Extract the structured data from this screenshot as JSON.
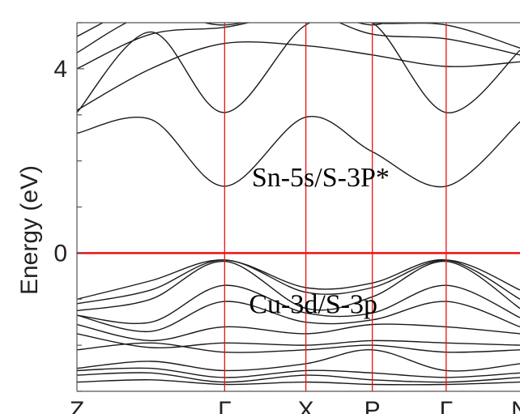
{
  "chart_data": {
    "type": "line",
    "title": "",
    "xlabel": "",
    "ylabel": "Energy (eV)",
    "x_ticks": [
      {
        "label": "Z",
        "x": 0
      },
      {
        "label": "Γ",
        "x": 1
      },
      {
        "label": "X",
        "x": 1.55
      },
      {
        "label": "P",
        "x": 2
      },
      {
        "label": "Γ",
        "x": 2.5
      },
      {
        "label": "N",
        "x": 3
      }
    ],
    "xlim": [
      0,
      3
    ],
    "y_ticks": [
      0,
      4
    ],
    "ylim": [
      -3,
      5
    ],
    "minor_y_step": 1,
    "fermi_level": 0,
    "grid": false,
    "annotations": [
      {
        "text": "Sn-5s/S-3P*",
        "x": 1.65,
        "y": 1.45
      },
      {
        "text": "Cu-3d/S-3p",
        "x": 1.6,
        "y": -1.3
      }
    ],
    "series": [
      {
        "values": [
          [
            0,
            2.6
          ],
          [
            0.5,
            2.9
          ],
          [
            1,
            1.45
          ],
          [
            1.55,
            2.95
          ],
          [
            2,
            2.2
          ],
          [
            2.5,
            1.45
          ],
          [
            3,
            2.85
          ]
        ]
      },
      {
        "values": [
          [
            0,
            3.05
          ],
          [
            0.5,
            4.8
          ],
          [
            1,
            3.05
          ],
          [
            1.55,
            4.95
          ],
          [
            2,
            5.0
          ],
          [
            2.5,
            3.05
          ],
          [
            3,
            4.4
          ]
        ]
      },
      {
        "values": [
          [
            0,
            3.1
          ],
          [
            0.5,
            4.0
          ],
          [
            1,
            4.55
          ],
          [
            1.55,
            4.5
          ],
          [
            2,
            4.3
          ],
          [
            2.5,
            4.05
          ],
          [
            3,
            4.15
          ]
        ]
      },
      {
        "values": [
          [
            0,
            4.0
          ],
          [
            0.5,
            4.75
          ],
          [
            1,
            4.9
          ],
          [
            1.55,
            5.2
          ],
          [
            2,
            4.75
          ],
          [
            2.5,
            4.65
          ],
          [
            3,
            4.3
          ]
        ]
      },
      {
        "values": [
          [
            0,
            4.35
          ],
          [
            0.5,
            5.2
          ],
          [
            1,
            4.95
          ],
          [
            1.55,
            5.3
          ],
          [
            2,
            5.0
          ],
          [
            2.5,
            4.95
          ],
          [
            3,
            4.45
          ]
        ]
      },
      {
        "values": [
          [
            0,
            4.7
          ],
          [
            0.35,
            5.3
          ]
        ]
      },
      {
        "values": [
          [
            0,
            5.0
          ],
          [
            0.2,
            5.3
          ]
        ]
      },
      {
        "values": [
          [
            1.65,
            5.3
          ],
          [
            2,
            4.95
          ],
          [
            2.3,
            5.3
          ]
        ]
      },
      {
        "values": [
          [
            0,
            -1.0
          ],
          [
            0.5,
            -0.6
          ],
          [
            1,
            -0.15
          ],
          [
            1.55,
            -0.75
          ],
          [
            2,
            -0.65
          ],
          [
            2.5,
            -0.15
          ],
          [
            3,
            -1.0
          ]
        ]
      },
      {
        "values": [
          [
            0,
            -1.1
          ],
          [
            0.5,
            -0.8
          ],
          [
            1,
            -0.15
          ],
          [
            1.55,
            -0.85
          ],
          [
            2,
            -0.75
          ],
          [
            2.5,
            -0.15
          ],
          [
            3,
            -0.8
          ]
        ]
      },
      {
        "values": [
          [
            0,
            -1.25
          ],
          [
            0.5,
            -1.0
          ],
          [
            1,
            -0.18
          ],
          [
            1.55,
            -1.2
          ],
          [
            2,
            -0.95
          ],
          [
            2.5,
            -0.18
          ],
          [
            3,
            -1.2
          ]
        ]
      },
      {
        "values": [
          [
            0,
            -1.35
          ],
          [
            0.5,
            -1.5
          ],
          [
            1,
            -0.7
          ],
          [
            1.55,
            -1.3
          ],
          [
            2,
            -1.3
          ],
          [
            2.5,
            -0.7
          ],
          [
            3,
            -1.4
          ]
        ]
      },
      {
        "values": [
          [
            0,
            -1.35
          ],
          [
            0.5,
            -1.7
          ],
          [
            1,
            -1.05
          ],
          [
            1.55,
            -1.5
          ],
          [
            2,
            -1.45
          ],
          [
            2.5,
            -1.05
          ],
          [
            3,
            -1.6
          ]
        ]
      },
      {
        "values": [
          [
            0,
            -1.55
          ],
          [
            0.5,
            -1.9
          ],
          [
            1,
            -1.6
          ],
          [
            1.55,
            -1.75
          ],
          [
            2,
            -1.55
          ],
          [
            2.5,
            -1.6
          ],
          [
            3,
            -1.75
          ]
        ]
      },
      {
        "values": [
          [
            0,
            -1.75
          ],
          [
            0.5,
            -2.05
          ],
          [
            1,
            -1.95
          ],
          [
            1.55,
            -2.0
          ],
          [
            2,
            -1.9
          ],
          [
            2.5,
            -1.95
          ],
          [
            3,
            -2.0
          ]
        ]
      },
      {
        "values": [
          [
            0,
            -2.1
          ],
          [
            0.5,
            -1.95
          ],
          [
            1,
            -2.15
          ],
          [
            1.55,
            -2.1
          ],
          [
            2,
            -2.0
          ],
          [
            2.5,
            -2.15
          ],
          [
            3,
            -2.1
          ]
        ]
      },
      {
        "values": [
          [
            0,
            -2.5
          ],
          [
            0.5,
            -2.35
          ],
          [
            1,
            -2.55
          ],
          [
            1.55,
            -2.4
          ],
          [
            2,
            -2.1
          ],
          [
            2.5,
            -2.55
          ],
          [
            3,
            -2.4
          ]
        ]
      },
      {
        "values": [
          [
            0,
            -2.55
          ],
          [
            0.5,
            -2.5
          ],
          [
            1,
            -2.7
          ],
          [
            1.55,
            -2.55
          ],
          [
            2,
            -2.6
          ],
          [
            2.5,
            -2.7
          ],
          [
            3,
            -2.6
          ]
        ]
      },
      {
        "values": [
          [
            0,
            -2.65
          ],
          [
            0.5,
            -2.6
          ],
          [
            1,
            -2.8
          ],
          [
            1.55,
            -2.65
          ],
          [
            2,
            -2.75
          ],
          [
            2.5,
            -2.8
          ],
          [
            3,
            -2.7
          ]
        ]
      },
      {
        "values": [
          [
            0,
            -2.8
          ],
          [
            0.5,
            -2.75
          ],
          [
            1,
            -2.85
          ],
          [
            1.55,
            -2.8
          ],
          [
            2,
            -2.85
          ],
          [
            2.5,
            -2.85
          ],
          [
            3,
            -2.8
          ]
        ]
      }
    ],
    "line_color": "#1a1a1a",
    "marker_line_color": "#ee1111",
    "axis_color": "#555555"
  }
}
